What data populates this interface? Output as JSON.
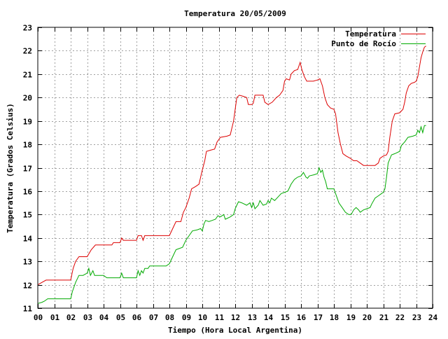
{
  "chart_data": {
    "type": "line",
    "title": "Temperatura 20/05/2009",
    "xlabel": "Tiempo (Hora Local Argentina)",
    "ylabel": "Temperatura (Grados Celsius)",
    "xlim": [
      0,
      24
    ],
    "ylim": [
      11,
      23
    ],
    "x_ticks": [
      "00",
      "01",
      "02",
      "03",
      "04",
      "05",
      "06",
      "07",
      "08",
      "09",
      "10",
      "11",
      "12",
      "13",
      "14",
      "15",
      "16",
      "17",
      "18",
      "19",
      "20",
      "21",
      "22",
      "23",
      "24"
    ],
    "y_ticks": [
      "11",
      "12",
      "13",
      "14",
      "15",
      "16",
      "17",
      "18",
      "19",
      "20",
      "21",
      "22",
      "23"
    ],
    "grid": true,
    "legend_position": "top-right",
    "series": [
      {
        "name": "Temperatura",
        "color": "#dd0000",
        "points": [
          [
            0.0,
            12.0
          ],
          [
            0.25,
            12.1
          ],
          [
            0.5,
            12.2
          ],
          [
            1.0,
            12.2
          ],
          [
            1.5,
            12.2
          ],
          [
            2.0,
            12.2
          ],
          [
            2.15,
            12.7
          ],
          [
            2.3,
            13.0
          ],
          [
            2.5,
            13.2
          ],
          [
            2.75,
            13.2
          ],
          [
            3.0,
            13.2
          ],
          [
            3.25,
            13.5
          ],
          [
            3.5,
            13.7
          ],
          [
            4.0,
            13.7
          ],
          [
            4.5,
            13.7
          ],
          [
            4.6,
            13.8
          ],
          [
            5.0,
            13.8
          ],
          [
            5.1,
            14.0
          ],
          [
            5.2,
            13.9
          ],
          [
            5.5,
            13.9
          ],
          [
            6.0,
            13.9
          ],
          [
            6.1,
            14.1
          ],
          [
            6.3,
            14.1
          ],
          [
            6.4,
            13.9
          ],
          [
            6.5,
            14.1
          ],
          [
            7.0,
            14.1
          ],
          [
            7.5,
            14.1
          ],
          [
            7.8,
            14.1
          ],
          [
            8.0,
            14.1
          ],
          [
            8.2,
            14.4
          ],
          [
            8.4,
            14.7
          ],
          [
            8.7,
            14.7
          ],
          [
            8.85,
            15.1
          ],
          [
            9.0,
            15.3
          ],
          [
            9.2,
            15.7
          ],
          [
            9.35,
            16.1
          ],
          [
            9.6,
            16.2
          ],
          [
            9.8,
            16.3
          ],
          [
            10.0,
            16.9
          ],
          [
            10.15,
            17.3
          ],
          [
            10.25,
            17.7
          ],
          [
            10.5,
            17.75
          ],
          [
            10.75,
            17.8
          ],
          [
            10.9,
            18.1
          ],
          [
            11.1,
            18.3
          ],
          [
            11.5,
            18.35
          ],
          [
            11.7,
            18.4
          ],
          [
            11.9,
            19.0
          ],
          [
            12.0,
            19.5
          ],
          [
            12.1,
            20.0
          ],
          [
            12.25,
            20.1
          ],
          [
            12.5,
            20.05
          ],
          [
            12.7,
            20.0
          ],
          [
            12.8,
            19.7
          ],
          [
            13.0,
            19.7
          ],
          [
            13.1,
            19.75
          ],
          [
            13.2,
            20.1
          ],
          [
            13.5,
            20.1
          ],
          [
            13.7,
            20.1
          ],
          [
            13.8,
            19.8
          ],
          [
            14.0,
            19.7
          ],
          [
            14.25,
            19.8
          ],
          [
            14.5,
            20.0
          ],
          [
            14.7,
            20.1
          ],
          [
            14.9,
            20.3
          ],
          [
            15.0,
            20.7
          ],
          [
            15.1,
            20.8
          ],
          [
            15.3,
            20.75
          ],
          [
            15.4,
            21.0
          ],
          [
            15.6,
            21.15
          ],
          [
            15.8,
            21.2
          ],
          [
            15.95,
            21.5
          ],
          [
            16.05,
            21.2
          ],
          [
            16.2,
            20.9
          ],
          [
            16.35,
            20.7
          ],
          [
            16.5,
            20.7
          ],
          [
            16.75,
            20.7
          ],
          [
            17.0,
            20.75
          ],
          [
            17.15,
            20.8
          ],
          [
            17.3,
            20.5
          ],
          [
            17.45,
            20.0
          ],
          [
            17.6,
            19.7
          ],
          [
            17.8,
            19.55
          ],
          [
            18.0,
            19.5
          ],
          [
            18.1,
            19.3
          ],
          [
            18.25,
            18.5
          ],
          [
            18.4,
            18.0
          ],
          [
            18.55,
            17.6
          ],
          [
            18.75,
            17.5
          ],
          [
            19.0,
            17.4
          ],
          [
            19.2,
            17.3
          ],
          [
            19.4,
            17.3
          ],
          [
            19.6,
            17.2
          ],
          [
            19.8,
            17.1
          ],
          [
            20.0,
            17.1
          ],
          [
            20.5,
            17.1
          ],
          [
            20.7,
            17.2
          ],
          [
            20.8,
            17.4
          ],
          [
            21.0,
            17.5
          ],
          [
            21.2,
            17.55
          ],
          [
            21.3,
            17.7
          ],
          [
            21.4,
            18.3
          ],
          [
            21.55,
            19.0
          ],
          [
            21.7,
            19.3
          ],
          [
            22.0,
            19.35
          ],
          [
            22.2,
            19.5
          ],
          [
            22.3,
            19.8
          ],
          [
            22.4,
            20.2
          ],
          [
            22.55,
            20.5
          ],
          [
            22.7,
            20.6
          ],
          [
            22.9,
            20.65
          ],
          [
            23.0,
            20.7
          ],
          [
            23.1,
            20.9
          ],
          [
            23.2,
            21.3
          ],
          [
            23.3,
            21.7
          ],
          [
            23.4,
            21.95
          ],
          [
            23.5,
            22.15
          ],
          [
            23.6,
            22.2
          ]
        ]
      },
      {
        "name": "Punto de Rocío",
        "color": "#00aa00",
        "points": [
          [
            0.0,
            11.2
          ],
          [
            0.25,
            11.25
          ],
          [
            0.4,
            11.3
          ],
          [
            0.6,
            11.4
          ],
          [
            1.0,
            11.4
          ],
          [
            1.5,
            11.4
          ],
          [
            2.0,
            11.4
          ],
          [
            2.1,
            11.7
          ],
          [
            2.3,
            12.1
          ],
          [
            2.5,
            12.4
          ],
          [
            2.75,
            12.4
          ],
          [
            3.0,
            12.5
          ],
          [
            3.1,
            12.7
          ],
          [
            3.2,
            12.4
          ],
          [
            3.35,
            12.6
          ],
          [
            3.45,
            12.4
          ],
          [
            4.0,
            12.4
          ],
          [
            4.2,
            12.3
          ],
          [
            4.5,
            12.3
          ],
          [
            5.0,
            12.3
          ],
          [
            5.1,
            12.5
          ],
          [
            5.2,
            12.3
          ],
          [
            5.5,
            12.3
          ],
          [
            6.0,
            12.3
          ],
          [
            6.1,
            12.6
          ],
          [
            6.2,
            12.4
          ],
          [
            6.3,
            12.6
          ],
          [
            6.4,
            12.5
          ],
          [
            6.5,
            12.7
          ],
          [
            6.7,
            12.7
          ],
          [
            6.8,
            12.8
          ],
          [
            7.0,
            12.8
          ],
          [
            7.5,
            12.8
          ],
          [
            7.8,
            12.8
          ],
          [
            8.0,
            12.9
          ],
          [
            8.2,
            13.2
          ],
          [
            8.4,
            13.5
          ],
          [
            8.8,
            13.6
          ],
          [
            9.0,
            13.9
          ],
          [
            9.2,
            14.1
          ],
          [
            9.4,
            14.3
          ],
          [
            9.7,
            14.35
          ],
          [
            9.9,
            14.4
          ],
          [
            10.0,
            14.3
          ],
          [
            10.1,
            14.6
          ],
          [
            10.2,
            14.75
          ],
          [
            10.4,
            14.7
          ],
          [
            10.6,
            14.75
          ],
          [
            10.8,
            14.8
          ],
          [
            10.95,
            14.95
          ],
          [
            11.1,
            14.9
          ],
          [
            11.3,
            15.0
          ],
          [
            11.4,
            14.8
          ],
          [
            11.7,
            14.9
          ],
          [
            11.9,
            15.0
          ],
          [
            12.0,
            15.25
          ],
          [
            12.1,
            15.4
          ],
          [
            12.2,
            15.55
          ],
          [
            12.4,
            15.5
          ],
          [
            12.7,
            15.4
          ],
          [
            12.9,
            15.5
          ],
          [
            13.0,
            15.3
          ],
          [
            13.1,
            15.5
          ],
          [
            13.2,
            15.25
          ],
          [
            13.4,
            15.4
          ],
          [
            13.5,
            15.6
          ],
          [
            13.7,
            15.4
          ],
          [
            13.9,
            15.45
          ],
          [
            14.0,
            15.6
          ],
          [
            14.1,
            15.5
          ],
          [
            14.2,
            15.7
          ],
          [
            14.4,
            15.6
          ],
          [
            14.6,
            15.75
          ],
          [
            14.8,
            15.9
          ],
          [
            15.0,
            15.95
          ],
          [
            15.2,
            16.0
          ],
          [
            15.4,
            16.3
          ],
          [
            15.6,
            16.5
          ],
          [
            15.8,
            16.6
          ],
          [
            16.0,
            16.65
          ],
          [
            16.15,
            16.8
          ],
          [
            16.3,
            16.6
          ],
          [
            16.4,
            16.55
          ],
          [
            16.5,
            16.65
          ],
          [
            16.8,
            16.7
          ],
          [
            17.0,
            16.75
          ],
          [
            17.1,
            17.0
          ],
          [
            17.2,
            16.8
          ],
          [
            17.3,
            16.9
          ],
          [
            17.4,
            16.6
          ],
          [
            17.5,
            16.4
          ],
          [
            17.6,
            16.1
          ],
          [
            18.0,
            16.1
          ],
          [
            18.1,
            15.9
          ],
          [
            18.3,
            15.5
          ],
          [
            18.5,
            15.3
          ],
          [
            18.7,
            15.1
          ],
          [
            18.9,
            15.0
          ],
          [
            19.05,
            15.0
          ],
          [
            19.2,
            15.2
          ],
          [
            19.35,
            15.3
          ],
          [
            19.5,
            15.2
          ],
          [
            19.6,
            15.1
          ],
          [
            19.8,
            15.2
          ],
          [
            20.0,
            15.25
          ],
          [
            20.2,
            15.3
          ],
          [
            20.3,
            15.45
          ],
          [
            20.5,
            15.7
          ],
          [
            20.7,
            15.8
          ],
          [
            20.9,
            15.9
          ],
          [
            21.0,
            15.95
          ],
          [
            21.1,
            16.1
          ],
          [
            21.2,
            16.6
          ],
          [
            21.3,
            17.2
          ],
          [
            21.5,
            17.55
          ],
          [
            21.7,
            17.6
          ],
          [
            22.0,
            17.7
          ],
          [
            22.1,
            17.95
          ],
          [
            22.3,
            18.1
          ],
          [
            22.5,
            18.3
          ],
          [
            22.8,
            18.35
          ],
          [
            23.0,
            18.4
          ],
          [
            23.1,
            18.6
          ],
          [
            23.2,
            18.5
          ],
          [
            23.3,
            18.75
          ],
          [
            23.4,
            18.5
          ],
          [
            23.5,
            18.8
          ],
          [
            23.6,
            18.8
          ]
        ]
      }
    ]
  }
}
